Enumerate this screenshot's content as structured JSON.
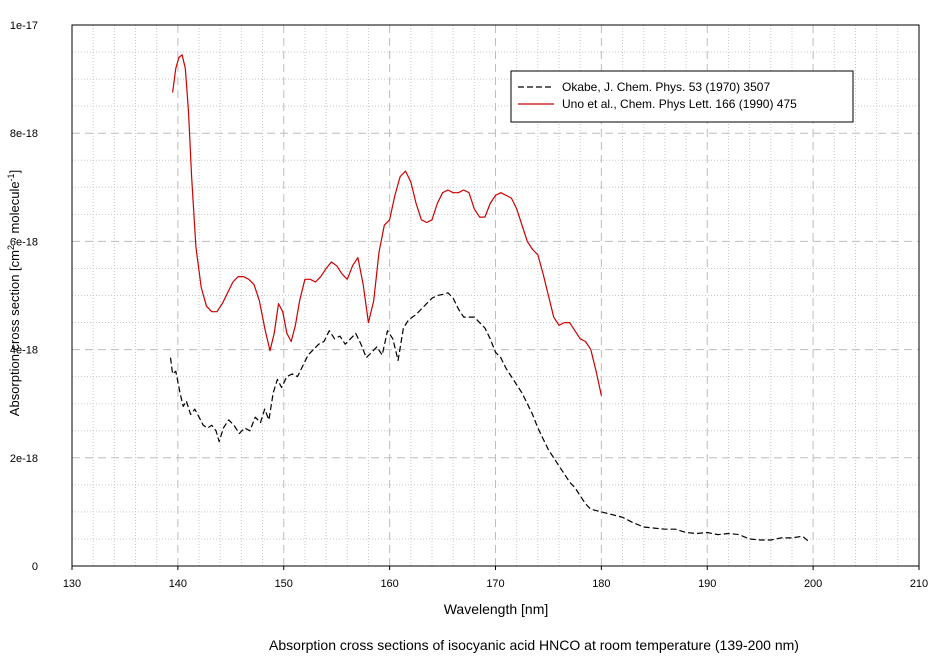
{
  "caption": "Absorption cross sections of isocyanic acid HNCO at room temperature (139-200 nm)",
  "chart_data": {
    "type": "line",
    "title": "",
    "xlabel": "Wavelength [nm]",
    "ylabel_main": "Absorption cross section [cm",
    "ylabel_sup1": "2",
    "ylabel_mid": " · molecule",
    "ylabel_sup2": "-1",
    "ylabel_end": "]",
    "xlim": [
      130,
      210
    ],
    "ylim": [
      0,
      1e-17
    ],
    "x_ticks": [
      130,
      140,
      150,
      160,
      170,
      180,
      190,
      200,
      210
    ],
    "x_tick_labels": [
      "130",
      "140",
      "150",
      "160",
      "170",
      "180",
      "190",
      "200",
      "210"
    ],
    "y_ticks": [
      0,
      2e-18,
      4e-18,
      6e-18,
      8e-18,
      1e-17
    ],
    "y_tick_labels": [
      "0",
      "2e-18",
      "4e-18",
      "6e-18",
      "8e-18",
      "1e-17"
    ],
    "grid": true,
    "legend_position": "top-right",
    "series": [
      {
        "name": "Okabe, J. Chem. Phys. 53 (1970) 3507",
        "color": "#000000",
        "style": "dashed",
        "x": [
          139.3,
          139.5,
          139.8,
          140.2,
          140.5,
          140.8,
          141.2,
          141.6,
          142.0,
          142.4,
          142.8,
          143.2,
          143.6,
          143.9,
          144.3,
          144.8,
          145.3,
          145.8,
          146.3,
          146.8,
          147.3,
          147.8,
          148.2,
          148.6,
          149.0,
          149.4,
          149.8,
          150.3,
          150.8,
          151.3,
          151.8,
          152.3,
          152.8,
          153.3,
          153.8,
          154.3,
          154.8,
          155.3,
          155.8,
          156.3,
          156.8,
          157.3,
          157.8,
          158.3,
          158.8,
          159.3,
          159.8,
          160.3,
          160.8,
          161.3,
          161.8,
          162.5,
          163.0,
          163.5,
          164.0,
          164.5,
          165.0,
          165.5,
          166.0,
          166.5,
          167.0,
          167.5,
          168.0,
          168.5,
          169.0,
          169.5,
          170.0,
          170.5,
          171.0,
          171.5,
          172.0,
          172.5,
          173.0,
          173.5,
          174.0,
          174.5,
          175.0,
          175.5,
          176.0,
          176.5,
          177.0,
          177.5,
          178.0,
          178.5,
          179.0,
          180.0,
          181.0,
          182.0,
          183.0,
          184.0,
          185.0,
          186.0,
          187.0,
          188.0,
          189.0,
          190.0,
          191.0,
          192.0,
          193.0,
          194.0,
          195.0,
          196.0,
          197.0,
          198.0,
          199.0,
          199.6
        ],
        "y": [
          3.85e-18,
          3.55e-18,
          3.6e-18,
          3.2e-18,
          2.95e-18,
          3.05e-18,
          2.8e-18,
          2.9e-18,
          2.75e-18,
          2.6e-18,
          2.55e-18,
          2.6e-18,
          2.5e-18,
          2.3e-18,
          2.55e-18,
          2.7e-18,
          2.6e-18,
          2.45e-18,
          2.55e-18,
          2.5e-18,
          2.75e-18,
          2.65e-18,
          2.9e-18,
          2.7e-18,
          3.2e-18,
          3.45e-18,
          3.3e-18,
          3.5e-18,
          3.55e-18,
          3.5e-18,
          3.7e-18,
          3.9e-18,
          4e-18,
          4.1e-18,
          4.15e-18,
          4.35e-18,
          4.2e-18,
          4.25e-18,
          4.1e-18,
          4.2e-18,
          4.3e-18,
          4.1e-18,
          3.85e-18,
          3.95e-18,
          4.05e-18,
          3.9e-18,
          4.35e-18,
          4.2e-18,
          3.8e-18,
          4.4e-18,
          4.55e-18,
          4.65e-18,
          4.75e-18,
          4.85e-18,
          4.95e-18,
          5e-18,
          5.02e-18,
          5.05e-18,
          4.95e-18,
          4.75e-18,
          4.6e-18,
          4.6e-18,
          4.6e-18,
          4.5e-18,
          4.4e-18,
          4.2e-18,
          3.95e-18,
          3.85e-18,
          3.65e-18,
          3.5e-18,
          3.35e-18,
          3.2e-18,
          3e-18,
          2.8e-18,
          2.55e-18,
          2.35e-18,
          2.15e-18,
          2e-18,
          1.85e-18,
          1.7e-18,
          1.55e-18,
          1.45e-18,
          1.3e-18,
          1.15e-18,
          1.05e-18,
          1e-18,
          9.5e-19,
          9e-19,
          8e-19,
          7.2e-19,
          7e-19,
          6.8e-19,
          6.8e-19,
          6.2e-19,
          6e-19,
          6.2e-19,
          5.8e-19,
          6e-19,
          5.8e-19,
          5e-19,
          4.8e-19,
          4.8e-19,
          5.2e-19,
          5.2e-19,
          5.5e-19,
          4.5e-19
        ]
      },
      {
        "name": "Uno et al., Chem. Phys Lett. 166 (1990) 475",
        "color": "#cc0000",
        "style": "solid",
        "x": [
          139.5,
          139.8,
          140.1,
          140.4,
          140.7,
          141.0,
          141.3,
          141.7,
          142.2,
          142.7,
          143.2,
          143.7,
          144.2,
          144.7,
          145.2,
          145.7,
          146.2,
          146.7,
          147.2,
          147.7,
          148.2,
          148.7,
          149.1,
          149.5,
          149.9,
          150.3,
          150.7,
          151.1,
          151.5,
          152.0,
          152.5,
          153.0,
          153.5,
          154.0,
          154.5,
          155.0,
          155.5,
          156.0,
          156.5,
          157.0,
          157.5,
          158.0,
          158.5,
          159.0,
          159.5,
          160.0,
          160.5,
          161.0,
          161.5,
          162.0,
          162.5,
          163.0,
          163.5,
          164.0,
          164.5,
          165.0,
          165.5,
          166.0,
          166.5,
          167.0,
          167.5,
          168.0,
          168.5,
          169.0,
          169.5,
          170.0,
          170.5,
          171.0,
          171.5,
          172.0,
          172.5,
          173.0,
          173.5,
          174.0,
          174.5,
          175.0,
          175.5,
          176.0,
          176.5,
          177.0,
          177.5,
          178.0,
          178.5,
          179.0,
          179.5,
          180.0
        ],
        "y": [
          8.75e-18,
          9.2e-18,
          9.4e-18,
          9.45e-18,
          9.2e-18,
          8.4e-18,
          7.2e-18,
          5.9e-18,
          5.15e-18,
          4.8e-18,
          4.7e-18,
          4.7e-18,
          4.85e-18,
          5.05e-18,
          5.25e-18,
          5.35e-18,
          5.35e-18,
          5.3e-18,
          5.2e-18,
          4.9e-18,
          4.4e-18,
          3.98e-18,
          4.3e-18,
          4.85e-18,
          4.7e-18,
          4.3e-18,
          4.15e-18,
          4.45e-18,
          4.9e-18,
          5.3e-18,
          5.3e-18,
          5.25e-18,
          5.35e-18,
          5.5e-18,
          5.62e-18,
          5.55e-18,
          5.4e-18,
          5.3e-18,
          5.55e-18,
          5.7e-18,
          5.2e-18,
          4.5e-18,
          4.9e-18,
          5.8e-18,
          6.3e-18,
          6.4e-18,
          6.85e-18,
          7.2e-18,
          7.3e-18,
          7.1e-18,
          6.7e-18,
          6.4e-18,
          6.35e-18,
          6.4e-18,
          6.7e-18,
          6.9e-18,
          6.95e-18,
          6.9e-18,
          6.9e-18,
          6.95e-18,
          6.9e-18,
          6.6e-18,
          6.45e-18,
          6.45e-18,
          6.7e-18,
          6.85e-18,
          6.9e-18,
          6.85e-18,
          6.8e-18,
          6.6e-18,
          6.3e-18,
          6e-18,
          5.85e-18,
          5.75e-18,
          5.4e-18,
          5e-18,
          4.6e-18,
          4.45e-18,
          4.5e-18,
          4.5e-18,
          4.35e-18,
          4.2e-18,
          4.15e-18,
          4e-18,
          3.6e-18,
          3.15e-18
        ]
      }
    ]
  }
}
